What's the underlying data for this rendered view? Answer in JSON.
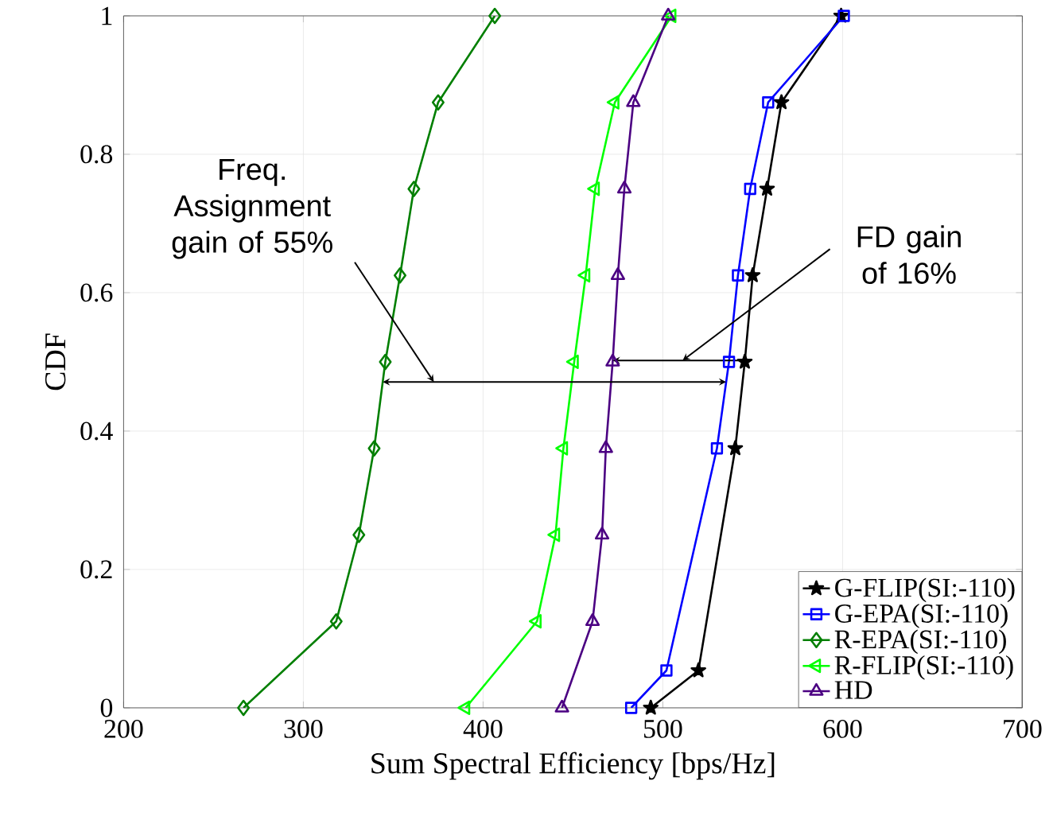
{
  "chart_data": {
    "type": "line",
    "xlabel": "Sum Spectral Efficiency [bps/Hz]",
    "ylabel": "CDF",
    "xlim": [
      200,
      700
    ],
    "ylim": [
      0,
      1
    ],
    "xticks": [
      200,
      300,
      400,
      500,
      600,
      700
    ],
    "yticks": [
      0,
      0.2,
      0.4,
      0.6,
      0.8,
      1
    ],
    "grid": true,
    "legend": "bottom right",
    "series": [
      {
        "name": "G-FLIP(SI:-110)",
        "color": "#000000",
        "marker": "star",
        "x": [
          493.3,
          519.8,
          540.3,
          545.6,
          550,
          558,
          566,
          599.2
        ],
        "values": [
          0,
          0.054,
          0.375,
          0.5,
          0.625,
          0.75,
          0.875,
          1
        ]
      },
      {
        "name": "G-EPA(SI:-110)",
        "color": "#0000ff",
        "marker": "square",
        "x": [
          482.4,
          502,
          530.1,
          536.8,
          541.8,
          548.6,
          558.6,
          600.7
        ],
        "values": [
          0,
          0.054,
          0.375,
          0.5,
          0.625,
          0.75,
          0.875,
          1
        ]
      },
      {
        "name": "R-EPA(SI:-110)",
        "color": "#007f00",
        "marker": "diamond",
        "x": [
          266.7,
          318.3,
          330.9,
          339.4,
          345.6,
          353.8,
          361.5,
          375,
          406.5
        ],
        "values": [
          0,
          0.125,
          0.25,
          0.375,
          0.5,
          0.625,
          0.75,
          0.875,
          1
        ]
      },
      {
        "name": "R-FLIP(SI:-110)",
        "color": "#00ff00",
        "marker": "triangle-left",
        "x": [
          390.3,
          430,
          440.3,
          444.7,
          450.7,
          457.1,
          462.4,
          473.3,
          505
        ],
        "values": [
          0,
          0.125,
          0.25,
          0.375,
          0.5,
          0.625,
          0.75,
          0.875,
          1
        ]
      },
      {
        "name": "HD",
        "color": "#4b0082",
        "marker": "triangle",
        "x": [
          443.9,
          460.9,
          466.2,
          468.3,
          472.1,
          475,
          478.6,
          483.6,
          503
        ],
        "values": [
          0,
          0.125,
          0.25,
          0.375,
          0.5,
          0.625,
          0.75,
          0.875,
          1
        ]
      }
    ],
    "annotations": [
      "Freq. Assignment gain of 55%",
      "FD gain of 16%"
    ]
  }
}
